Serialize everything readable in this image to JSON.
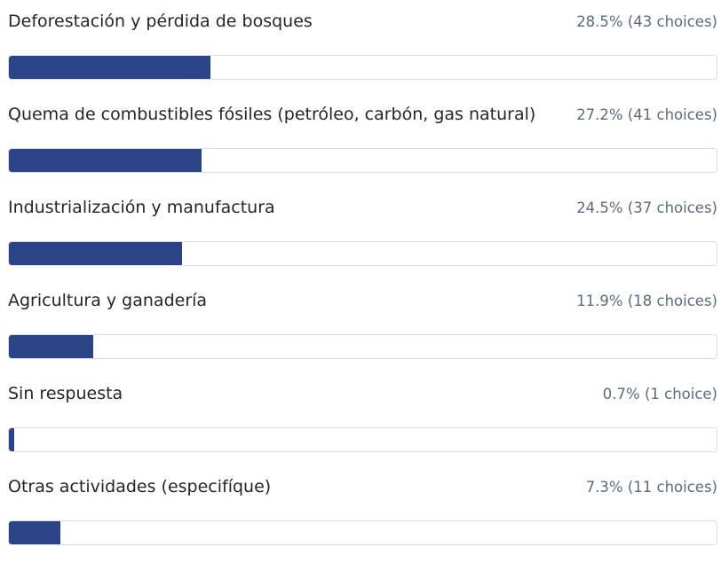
{
  "chart_data": {
    "type": "bar",
    "categories": [
      "Deforestación y pérdida de bosques",
      "Quema de combustibles fósiles (petróleo, carbón, gas natural)",
      "Industrialización y manufactura",
      "Agricultura y ganadería",
      "Sin respuesta",
      "Otras actividades (especifíque)"
    ],
    "values": [
      28.5,
      27.2,
      24.5,
      11.9,
      0.7,
      7.3
    ],
    "value_labels": [
      "28.5% (43 choices)",
      "27.2% (41 choices)",
      "24.5% (37 choices)",
      "11.9% (18 choices)",
      "0.7% (1 choice)",
      "7.3% (11 choices)"
    ],
    "color": "#2b4487",
    "xlim": [
      0,
      100
    ]
  }
}
